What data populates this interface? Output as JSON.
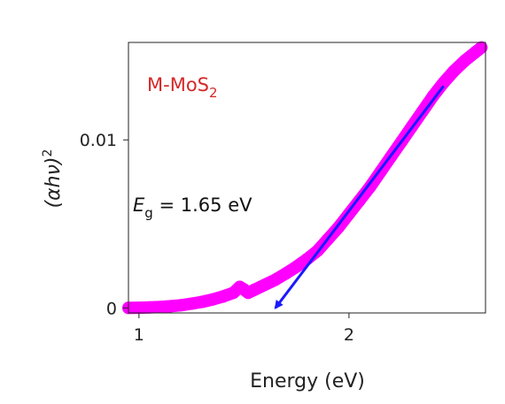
{
  "chart_data": {
    "type": "scatter",
    "x_label": "Energy (eV)",
    "y_label": {
      "base": "(αhν)",
      "sup": "2"
    },
    "xlim": [
      0.95,
      2.65
    ],
    "ylim": [
      -0.0003,
      0.0158
    ],
    "x_ticks": [
      {
        "value": 1,
        "label": "1"
      },
      {
        "value": 2,
        "label": "2"
      }
    ],
    "y_ticks": [
      {
        "value": 0,
        "label": "0"
      },
      {
        "value": 0.01,
        "label": "0.01"
      }
    ],
    "grid": false,
    "series": [
      {
        "name": "M-MoS2",
        "color": "#ff00ff",
        "points": [
          [
            0.95,
            0.0
          ],
          [
            1.0,
            1e-05
          ],
          [
            1.05,
            3e-05
          ],
          [
            1.1,
            6e-05
          ],
          [
            1.15,
            0.0001
          ],
          [
            1.2,
            0.00016
          ],
          [
            1.25,
            0.00025
          ],
          [
            1.3,
            0.00036
          ],
          [
            1.35,
            0.0005
          ],
          [
            1.4,
            0.00068
          ],
          [
            1.45,
            0.0009
          ],
          [
            1.48,
            0.00125
          ],
          [
            1.5,
            0.0011
          ],
          [
            1.52,
            0.0009
          ],
          [
            1.55,
            0.00108
          ],
          [
            1.6,
            0.00138
          ],
          [
            1.65,
            0.00168
          ],
          [
            1.7,
            0.00205
          ],
          [
            1.75,
            0.00245
          ],
          [
            1.8,
            0.0029
          ],
          [
            1.85,
            0.0034
          ],
          [
            1.9,
            0.0041
          ],
          [
            1.95,
            0.0048
          ],
          [
            2.0,
            0.0056
          ],
          [
            2.05,
            0.0064
          ],
          [
            2.1,
            0.0072
          ],
          [
            2.15,
            0.0081
          ],
          [
            2.2,
            0.009
          ],
          [
            2.25,
            0.0099
          ],
          [
            2.3,
            0.0108
          ],
          [
            2.35,
            0.0117
          ],
          [
            2.4,
            0.0126
          ],
          [
            2.45,
            0.0134
          ],
          [
            2.5,
            0.0141
          ],
          [
            2.55,
            0.0147
          ],
          [
            2.6,
            0.0152
          ],
          [
            2.63,
            0.0155
          ]
        ]
      }
    ],
    "fit_line": {
      "color": "#1a1aff",
      "from": [
        2.45,
        0.0132
      ],
      "to": [
        1.65,
        0.0
      ]
    },
    "legend_label": {
      "main": "M-MoS",
      "sub": "2",
      "color": "#d62728"
    },
    "annotation": {
      "prefix": "E",
      "sub": "g",
      "text": " = 1.65 eV",
      "color": "#111111"
    }
  }
}
